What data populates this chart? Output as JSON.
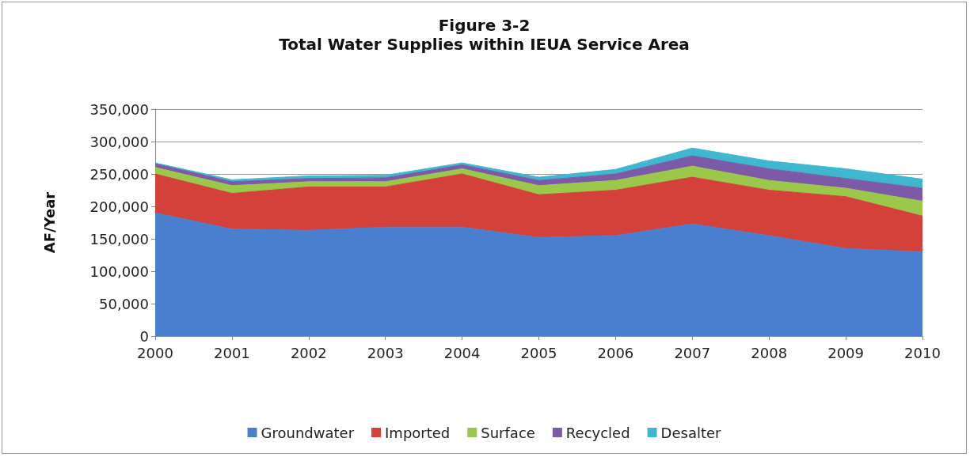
{
  "chart_data": {
    "type": "area",
    "stacked": true,
    "title": "Figure 3-2",
    "subtitle": "Total Water Supplies within IEUA Service Area",
    "ylabel": "AF/Year",
    "categories": [
      "2000",
      "2001",
      "2002",
      "2003",
      "2004",
      "2005",
      "2006",
      "2007",
      "2008",
      "2009",
      "2010"
    ],
    "series": [
      {
        "name": "Groundwater",
        "color": "#4a7fcf",
        "values": [
          190000,
          165000,
          163000,
          168000,
          168000,
          152000,
          155000,
          173000,
          155000,
          135000,
          130000
        ]
      },
      {
        "name": "Imported",
        "color": "#d4403a",
        "values": [
          60000,
          55000,
          67000,
          62000,
          82000,
          66000,
          70000,
          72000,
          70000,
          80000,
          55000
        ]
      },
      {
        "name": "Surface",
        "color": "#9bc84a",
        "values": [
          10000,
          12000,
          8000,
          8000,
          8000,
          14000,
          15000,
          17000,
          15000,
          13000,
          23000
        ]
      },
      {
        "name": "Recycled",
        "color": "#7d5aa8",
        "values": [
          6000,
          6000,
          5000,
          6000,
          6000,
          8000,
          10000,
          16000,
          18000,
          15000,
          20000
        ]
      },
      {
        "name": "Desalter",
        "color": "#3fb8cf",
        "values": [
          1000,
          3000,
          4000,
          4000,
          3000,
          5000,
          7000,
          12000,
          12000,
          15000,
          14000
        ]
      }
    ],
    "ylim": [
      0,
      350000
    ],
    "yticks": [
      {
        "value": 0,
        "label": "0"
      },
      {
        "value": 50000,
        "label": "50,000"
      },
      {
        "value": 100000,
        "label": "100,000"
      },
      {
        "value": 150000,
        "label": "150,000"
      },
      {
        "value": 200000,
        "label": "200,000"
      },
      {
        "value": 250000,
        "label": "250,000"
      },
      {
        "value": 300000,
        "label": "300,000"
      },
      {
        "value": 350000,
        "label": "350,000"
      }
    ],
    "grid": "y",
    "legend": "bottom"
  }
}
